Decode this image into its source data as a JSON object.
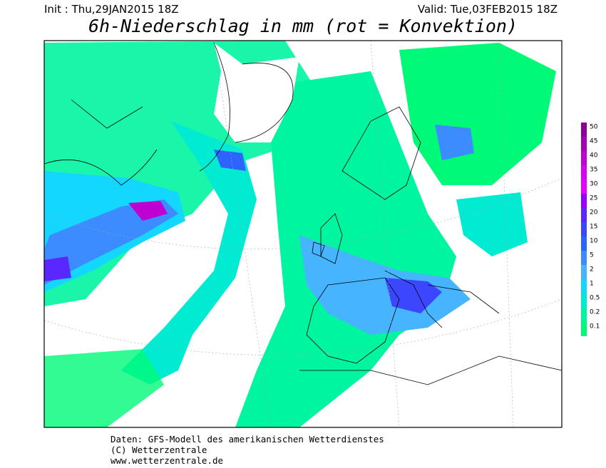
{
  "header": {
    "init": "Init : Thu,29JAN2015 18Z",
    "valid": "Valid: Tue,03FEB2015 18Z",
    "title": "6h-Niederschlag in mm (rot = Konvektion)"
  },
  "legend": {
    "levels": [
      {
        "value": 50,
        "color": "#8c0096"
      },
      {
        "value": 45,
        "color": "#a500b4"
      },
      {
        "value": 40,
        "color": "#be00d2"
      },
      {
        "value": 35,
        "color": "#d700f0"
      },
      {
        "value": 30,
        "color": "#e600ff"
      },
      {
        "value": 25,
        "color": "#9600ff"
      },
      {
        "value": 20,
        "color": "#5a28ff"
      },
      {
        "value": 15,
        "color": "#3c46ff"
      },
      {
        "value": 10,
        "color": "#2d64ff"
      },
      {
        "value": 5,
        "color": "#3c8cff"
      },
      {
        "value": 2,
        "color": "#46b4ff"
      },
      {
        "value": 1,
        "color": "#14d7ff"
      },
      {
        "value": 0.5,
        "color": "#00ebd2"
      },
      {
        "value": 0.2,
        "color": "#00f5a0"
      },
      {
        "value": 0.1,
        "color": "#00fa78"
      }
    ]
  },
  "footer": {
    "lines": [
      "Daten: GFS-Modell des amerikanischen Wetterdienstes",
      "(C) Wetterzentrale",
      "www.wetterzentrale.de"
    ]
  }
}
